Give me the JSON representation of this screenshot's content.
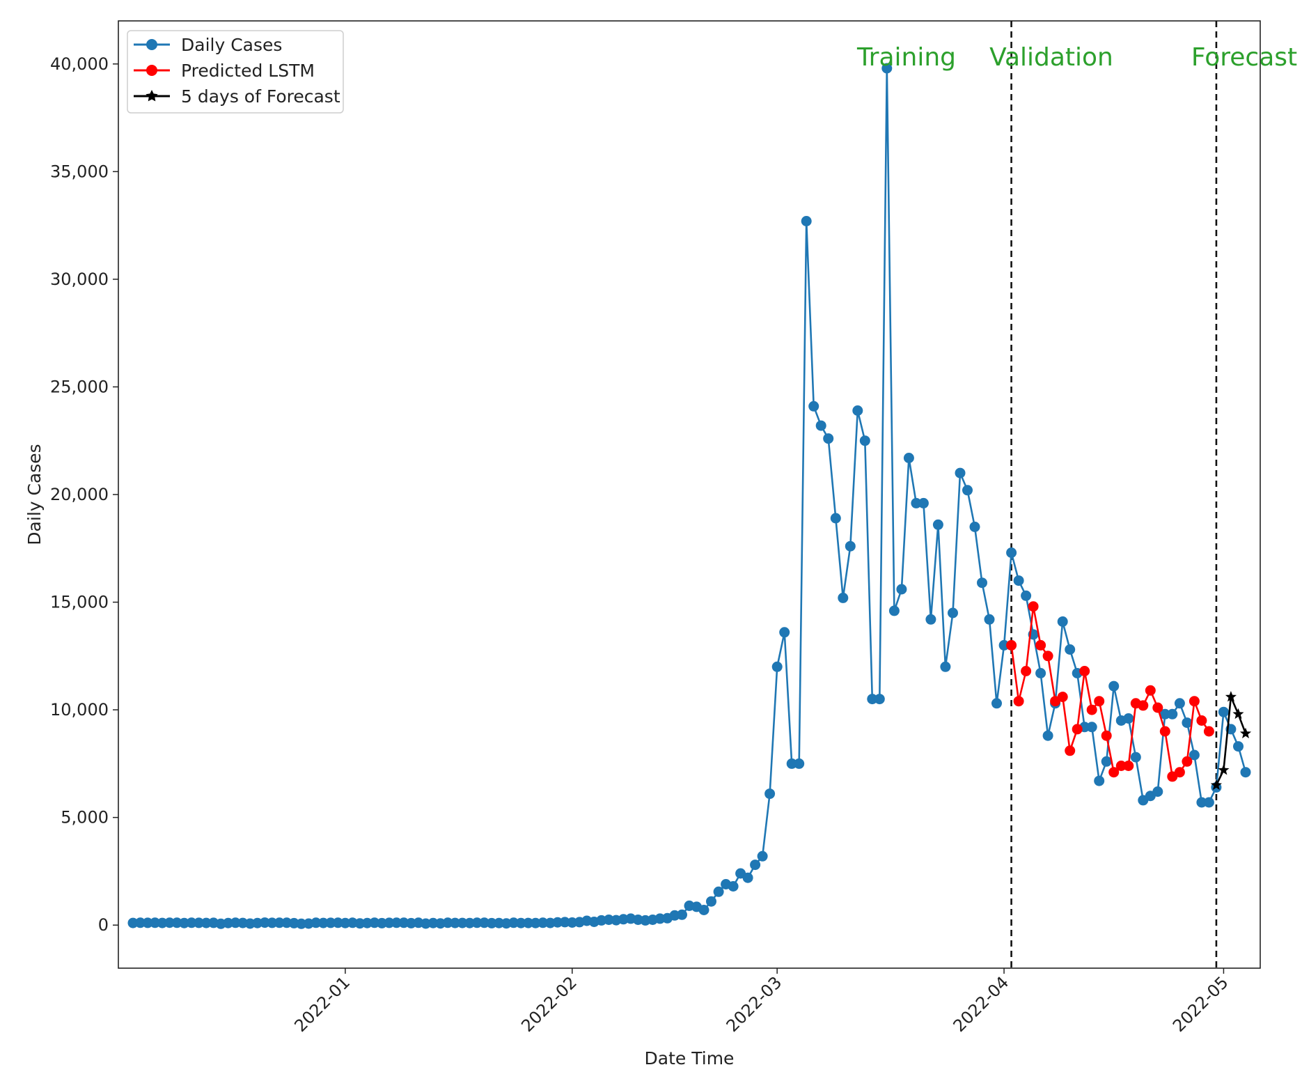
{
  "chart_data": {
    "type": "line",
    "title": "",
    "xlabel": "Date Time",
    "ylabel": "Daily Cases",
    "xlim": [
      "2021-12-01",
      "2022-05-06"
    ],
    "ylim": [
      -2000,
      42000
    ],
    "grid": false,
    "legend_position": "top-left",
    "y_ticks": [
      {
        "value": 0,
        "label": "0"
      },
      {
        "value": 5000,
        "label": "5,000"
      },
      {
        "value": 10000,
        "label": "10,000"
      },
      {
        "value": 15000,
        "label": "15,000"
      },
      {
        "value": 20000,
        "label": "20,000"
      },
      {
        "value": 25000,
        "label": "25,000"
      },
      {
        "value": 30000,
        "label": "30,000"
      },
      {
        "value": 35000,
        "label": "35,000"
      },
      {
        "value": 40000,
        "label": "40,000"
      }
    ],
    "x_ticks": [
      {
        "value": "2022-01-01",
        "label": "2022-01"
      },
      {
        "value": "2022-02-01",
        "label": "2022-02"
      },
      {
        "value": "2022-03-01",
        "label": "2022-03"
      },
      {
        "value": "2022-04-01",
        "label": "2022-04"
      },
      {
        "value": "2022-05-01",
        "label": "2022-05"
      }
    ],
    "split_lines": [
      "2022-04-02",
      "2022-04-30"
    ],
    "phase_labels": [
      {
        "text": "Training",
        "color": "#2ca02c"
      },
      {
        "text": "Validation",
        "color": "#2ca02c"
      },
      {
        "text": "Forecast",
        "color": "#2ca02c"
      }
    ],
    "series": [
      {
        "name": "Daily Cases",
        "color": "#1f77b4",
        "marker": "circle",
        "start_date": "2021-12-03",
        "values": [
          100,
          110,
          105,
          108,
          100,
          112,
          109,
          95,
          110,
          105,
          100,
          105,
          60,
          95,
          110,
          100,
          70,
          98,
          115,
          105,
          110,
          108,
          90,
          60,
          70,
          110,
          100,
          105,
          110,
          95,
          110,
          80,
          95,
          110,
          90,
          105,
          110,
          108,
          90,
          110,
          70,
          95,
          80,
          110,
          100,
          100,
          95,
          108,
          110,
          90,
          95,
          80,
          108,
          95,
          100,
          95,
          110,
          100,
          130,
          140,
          120,
          140,
          200,
          150,
          220,
          250,
          230,
          270,
          300,
          250,
          220,
          250,
          300,
          320,
          450,
          480,
          900,
          850,
          700,
          1100,
          1550,
          1900,
          1800,
          2400,
          2200,
          2800,
          3200,
          6100,
          12000,
          13600,
          7500,
          7500,
          32700,
          24100,
          23200,
          22600,
          18900,
          15200,
          17600,
          23900,
          22500,
          10500,
          10500,
          39800,
          14600,
          15600,
          21700,
          19600,
          19600,
          14200,
          18600,
          12000,
          14500,
          21000,
          20200,
          18500,
          15900,
          14200,
          10300,
          13000,
          17300,
          16000,
          15300,
          13500,
          11700,
          8800,
          10300,
          14100,
          12800,
          11700,
          9200,
          9200,
          6700,
          7600,
          11100,
          9500,
          9600,
          7800,
          5800,
          6000,
          6200,
          9800,
          9800,
          10300,
          9400,
          7900,
          5700,
          5700,
          6400,
          9900,
          9100,
          8300,
          7100
        ]
      },
      {
        "name": "Predicted LSTM",
        "color": "#ff0000",
        "marker": "circle",
        "start_date": "2022-04-02",
        "values": [
          13000,
          10400,
          11800,
          14800,
          13000,
          12500,
          10400,
          10600,
          8100,
          9100,
          11800,
          10000,
          10400,
          8800,
          7100,
          7400,
          7400,
          10300,
          10200,
          10900,
          10100,
          9000,
          6900,
          7100,
          7600,
          10400,
          9500,
          9000
        ]
      },
      {
        "name": "5 days of Forecast",
        "color": "#000000",
        "marker": "star",
        "start_date": "2022-04-30",
        "values": [
          6500,
          7200,
          10600,
          9800,
          8900
        ]
      }
    ]
  }
}
